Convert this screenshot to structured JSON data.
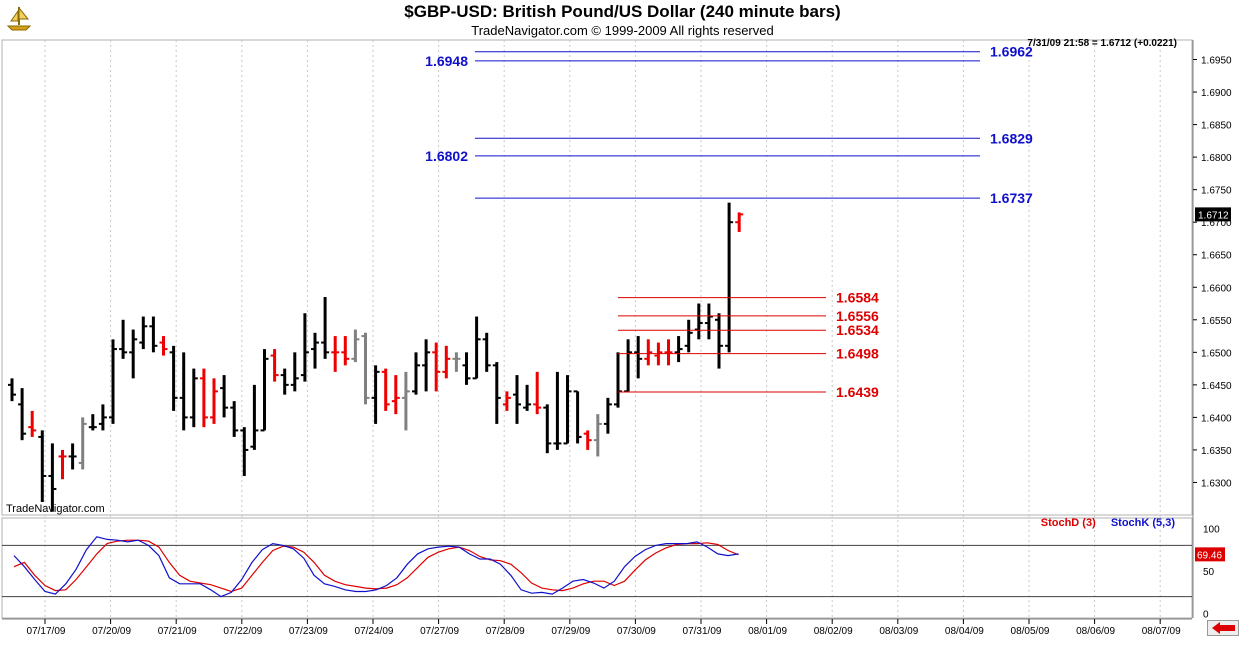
{
  "header": {
    "title": "$GBP-USD:  British Pound/US Dollar  (240 minute bars)",
    "copyright": "TradeNavigator.com © 1999-2009 All rights reserved",
    "last_quote": "7/31/09 21:58 = 1.6712 (+0.0221)",
    "watermark": "TradeNavigator.com"
  },
  "colors": {
    "up_bar": "#000000",
    "down_bar": "#ee0000",
    "neutral_bar": "#808080",
    "resistance": "#1010cc",
    "support": "#dd0000",
    "stoch_d": "#dd0000",
    "stoch_k": "#1010cc"
  },
  "icons": {
    "logo": "tradenavigator-logo-icon",
    "scroll": "red-left-arrow-icon"
  },
  "chart_data": [
    {
      "type": "ohlc",
      "title": "$GBP-USD:  British Pound/US Dollar  (240 minute bars)",
      "ylim": [
        1.625,
        1.698
      ],
      "yticks": [
        1.63,
        1.635,
        1.64,
        1.645,
        1.65,
        1.655,
        1.66,
        1.665,
        1.67,
        1.675,
        1.68,
        1.685,
        1.69,
        1.695
      ],
      "price_label": "1.6712",
      "x_dates": [
        "07/17/09",
        "07/20/09",
        "07/21/09",
        "07/22/09",
        "07/23/09",
        "07/24/09",
        "07/27/09",
        "07/28/09",
        "07/29/09",
        "07/30/09",
        "07/31/09",
        "08/01/09",
        "08/02/09",
        "08/03/09",
        "08/04/09",
        "08/05/09",
        "08/06/09",
        "08/07/09"
      ],
      "bars": [
        {
          "o": 1.645,
          "h": 1.646,
          "l": 1.6425,
          "c": 1.6435,
          "d": "up"
        },
        {
          "o": 1.642,
          "h": 1.6445,
          "l": 1.6365,
          "c": 1.6375,
          "d": "up"
        },
        {
          "o": 1.6385,
          "h": 1.641,
          "l": 1.637,
          "c": 1.638,
          "d": "dn"
        },
        {
          "o": 1.637,
          "h": 1.638,
          "l": 1.627,
          "c": 1.631,
          "d": "up"
        },
        {
          "o": 1.631,
          "h": 1.636,
          "l": 1.6255,
          "c": 1.629,
          "d": "up"
        },
        {
          "o": 1.634,
          "h": 1.635,
          "l": 1.6305,
          "c": 1.634,
          "d": "dn"
        },
        {
          "o": 1.634,
          "h": 1.636,
          "l": 1.632,
          "c": 1.634,
          "d": "up"
        },
        {
          "o": 1.633,
          "h": 1.64,
          "l": 1.632,
          "c": 1.639,
          "d": "nu"
        },
        {
          "o": 1.6385,
          "h": 1.6405,
          "l": 1.638,
          "c": 1.6385,
          "d": "up"
        },
        {
          "o": 1.639,
          "h": 1.642,
          "l": 1.638,
          "c": 1.64,
          "d": "up"
        },
        {
          "o": 1.64,
          "h": 1.652,
          "l": 1.639,
          "c": 1.6505,
          "d": "up"
        },
        {
          "o": 1.6505,
          "h": 1.655,
          "l": 1.649,
          "c": 1.65,
          "d": "up"
        },
        {
          "o": 1.65,
          "h": 1.6535,
          "l": 1.646,
          "c": 1.652,
          "d": "up"
        },
        {
          "o": 1.6515,
          "h": 1.6555,
          "l": 1.6505,
          "c": 1.654,
          "d": "up"
        },
        {
          "o": 1.654,
          "h": 1.6555,
          "l": 1.65,
          "c": 1.651,
          "d": "up"
        },
        {
          "o": 1.6515,
          "h": 1.6525,
          "l": 1.6495,
          "c": 1.6505,
          "d": "dn"
        },
        {
          "o": 1.65,
          "h": 1.651,
          "l": 1.641,
          "c": 1.643,
          "d": "up"
        },
        {
          "o": 1.643,
          "h": 1.65,
          "l": 1.638,
          "c": 1.64,
          "d": "up"
        },
        {
          "o": 1.64,
          "h": 1.6475,
          "l": 1.6385,
          "c": 1.646,
          "d": "up"
        },
        {
          "o": 1.646,
          "h": 1.6475,
          "l": 1.6385,
          "c": 1.64,
          "d": "dn"
        },
        {
          "o": 1.64,
          "h": 1.646,
          "l": 1.639,
          "c": 1.644,
          "d": "dn"
        },
        {
          "o": 1.6445,
          "h": 1.6465,
          "l": 1.64,
          "c": 1.6415,
          "d": "up"
        },
        {
          "o": 1.6415,
          "h": 1.6425,
          "l": 1.637,
          "c": 1.638,
          "d": "up"
        },
        {
          "o": 1.638,
          "h": 1.6385,
          "l": 1.631,
          "c": 1.635,
          "d": "up"
        },
        {
          "o": 1.6355,
          "h": 1.645,
          "l": 1.635,
          "c": 1.638,
          "d": "up"
        },
        {
          "o": 1.638,
          "h": 1.6505,
          "l": 1.638,
          "c": 1.649,
          "d": "up"
        },
        {
          "o": 1.6495,
          "h": 1.6505,
          "l": 1.6455,
          "c": 1.6465,
          "d": "dn"
        },
        {
          "o": 1.6465,
          "h": 1.6475,
          "l": 1.6435,
          "c": 1.645,
          "d": "up"
        },
        {
          "o": 1.645,
          "h": 1.65,
          "l": 1.644,
          "c": 1.646,
          "d": "up"
        },
        {
          "o": 1.6465,
          "h": 1.656,
          "l": 1.6455,
          "c": 1.65,
          "d": "up"
        },
        {
          "o": 1.6505,
          "h": 1.653,
          "l": 1.6475,
          "c": 1.6515,
          "d": "up"
        },
        {
          "o": 1.6515,
          "h": 1.6585,
          "l": 1.649,
          "c": 1.65,
          "d": "up"
        },
        {
          "o": 1.65,
          "h": 1.6525,
          "l": 1.647,
          "c": 1.65,
          "d": "dn"
        },
        {
          "o": 1.65,
          "h": 1.6525,
          "l": 1.648,
          "c": 1.649,
          "d": "dn"
        },
        {
          "o": 1.649,
          "h": 1.6535,
          "l": 1.6485,
          "c": 1.652,
          "d": "nu"
        },
        {
          "o": 1.6525,
          "h": 1.653,
          "l": 1.642,
          "c": 1.643,
          "d": "nu"
        },
        {
          "o": 1.643,
          "h": 1.648,
          "l": 1.639,
          "c": 1.647,
          "d": "up"
        },
        {
          "o": 1.647,
          "h": 1.6475,
          "l": 1.641,
          "c": 1.642,
          "d": "dn"
        },
        {
          "o": 1.6425,
          "h": 1.6465,
          "l": 1.6405,
          "c": 1.643,
          "d": "dn"
        },
        {
          "o": 1.643,
          "h": 1.647,
          "l": 1.638,
          "c": 1.644,
          "d": "nu"
        },
        {
          "o": 1.644,
          "h": 1.65,
          "l": 1.6435,
          "c": 1.648,
          "d": "up"
        },
        {
          "o": 1.648,
          "h": 1.652,
          "l": 1.644,
          "c": 1.65,
          "d": "up"
        },
        {
          "o": 1.65,
          "h": 1.6515,
          "l": 1.644,
          "c": 1.647,
          "d": "dn"
        },
        {
          "o": 1.647,
          "h": 1.651,
          "l": 1.646,
          "c": 1.649,
          "d": "dn"
        },
        {
          "o": 1.649,
          "h": 1.65,
          "l": 1.647,
          "c": 1.649,
          "d": "nu"
        },
        {
          "o": 1.648,
          "h": 1.65,
          "l": 1.645,
          "c": 1.646,
          "d": "up"
        },
        {
          "o": 1.646,
          "h": 1.6555,
          "l": 1.646,
          "c": 1.652,
          "d": "up"
        },
        {
          "o": 1.652,
          "h": 1.653,
          "l": 1.647,
          "c": 1.648,
          "d": "up"
        },
        {
          "o": 1.648,
          "h": 1.6485,
          "l": 1.639,
          "c": 1.643,
          "d": "up"
        },
        {
          "o": 1.642,
          "h": 1.644,
          "l": 1.641,
          "c": 1.643,
          "d": "dn"
        },
        {
          "o": 1.6435,
          "h": 1.6465,
          "l": 1.639,
          "c": 1.642,
          "d": "up"
        },
        {
          "o": 1.6415,
          "h": 1.645,
          "l": 1.641,
          "c": 1.642,
          "d": "up"
        },
        {
          "o": 1.642,
          "h": 1.647,
          "l": 1.6405,
          "c": 1.6415,
          "d": "dn"
        },
        {
          "o": 1.6415,
          "h": 1.642,
          "l": 1.6345,
          "c": 1.636,
          "d": "up"
        },
        {
          "o": 1.636,
          "h": 1.647,
          "l": 1.635,
          "c": 1.636,
          "d": "up"
        },
        {
          "o": 1.636,
          "h": 1.6465,
          "l": 1.636,
          "c": 1.644,
          "d": "up"
        },
        {
          "o": 1.644,
          "h": 1.644,
          "l": 1.636,
          "c": 1.637,
          "d": "up"
        },
        {
          "o": 1.6375,
          "h": 1.638,
          "l": 1.635,
          "c": 1.6365,
          "d": "dn"
        },
        {
          "o": 1.6365,
          "h": 1.6405,
          "l": 1.634,
          "c": 1.639,
          "d": "nu"
        },
        {
          "o": 1.639,
          "h": 1.643,
          "l": 1.6375,
          "c": 1.642,
          "d": "up"
        },
        {
          "o": 1.642,
          "h": 1.65,
          "l": 1.6415,
          "c": 1.644,
          "d": "up"
        },
        {
          "o": 1.644,
          "h": 1.652,
          "l": 1.644,
          "c": 1.65,
          "d": "up"
        },
        {
          "o": 1.65,
          "h": 1.6525,
          "l": 1.646,
          "c": 1.649,
          "d": "up"
        },
        {
          "o": 1.649,
          "h": 1.652,
          "l": 1.648,
          "c": 1.65,
          "d": "dn"
        },
        {
          "o": 1.6495,
          "h": 1.6515,
          "l": 1.648,
          "c": 1.65,
          "d": "dn"
        },
        {
          "o": 1.65,
          "h": 1.652,
          "l": 1.648,
          "c": 1.65,
          "d": "dn"
        },
        {
          "o": 1.65,
          "h": 1.6525,
          "l": 1.6485,
          "c": 1.6505,
          "d": "up"
        },
        {
          "o": 1.651,
          "h": 1.655,
          "l": 1.65,
          "c": 1.653,
          "d": "up"
        },
        {
          "o": 1.6535,
          "h": 1.6575,
          "l": 1.652,
          "c": 1.6545,
          "d": "up"
        },
        {
          "o": 1.6545,
          "h": 1.6575,
          "l": 1.652,
          "c": 1.6555,
          "d": "up"
        },
        {
          "o": 1.655,
          "h": 1.656,
          "l": 1.6475,
          "c": 1.651,
          "d": "up"
        },
        {
          "o": 1.651,
          "h": 1.673,
          "l": 1.65,
          "c": 1.67,
          "d": "up"
        },
        {
          "o": 1.67,
          "h": 1.6715,
          "l": 1.6685,
          "c": 1.6712,
          "d": "dn"
        }
      ],
      "levels": [
        {
          "value": "1.6962",
          "price": 1.6962,
          "side": "right",
          "color": "#1010cc"
        },
        {
          "value": "1.6948",
          "price": 1.6948,
          "side": "left",
          "color": "#1010cc"
        },
        {
          "value": "1.6829",
          "price": 1.6829,
          "side": "right",
          "color": "#1010cc"
        },
        {
          "value": "1.6802",
          "price": 1.6802,
          "side": "left",
          "color": "#1010cc"
        },
        {
          "value": "1.6737",
          "price": 1.6737,
          "side": "right",
          "color": "#1010cc"
        },
        {
          "value": "1.6584",
          "price": 1.6584,
          "side": "right",
          "color": "#dd0000"
        },
        {
          "value": "1.6556",
          "price": 1.6556,
          "side": "right",
          "color": "#dd0000"
        },
        {
          "value": "1.6534",
          "price": 1.6534,
          "side": "right",
          "color": "#dd0000"
        },
        {
          "value": "1.6498",
          "price": 1.6498,
          "side": "right",
          "color": "#dd0000"
        },
        {
          "value": "1.6439",
          "price": 1.6439,
          "side": "right",
          "color": "#dd0000"
        }
      ]
    },
    {
      "type": "line",
      "ylim": [
        -5,
        112
      ],
      "yticks": [
        "100",
        "50",
        "0"
      ],
      "overbought": 80,
      "oversold": 20,
      "legend": [
        "StochD (3)",
        "StochK (5,3)"
      ],
      "last_value": "69.46",
      "series": [
        {
          "name": "StochD (3)",
          "values": [
            55,
            60,
            45,
            33,
            27,
            28,
            40,
            55,
            70,
            82,
            85,
            86,
            86,
            85,
            78,
            60,
            45,
            38,
            36,
            34,
            30,
            26,
            30,
            45,
            60,
            74,
            79,
            78,
            72,
            60,
            45,
            38,
            34,
            32,
            30,
            29,
            30,
            34,
            42,
            54,
            66,
            72,
            76,
            78,
            74,
            67,
            63,
            62,
            58,
            48,
            36,
            30,
            28,
            27,
            30,
            35,
            38,
            38,
            33,
            38,
            51,
            63,
            71,
            77,
            81,
            82,
            82,
            83,
            81,
            74,
            69
          ]
        },
        {
          "name": "StochK (5,3)",
          "values": [
            68,
            55,
            40,
            26,
            23,
            35,
            52,
            75,
            90,
            87,
            86,
            84,
            86,
            80,
            68,
            42,
            35,
            35,
            35,
            28,
            20,
            25,
            40,
            60,
            75,
            82,
            80,
            76,
            65,
            45,
            35,
            32,
            28,
            26,
            26,
            28,
            33,
            42,
            58,
            70,
            76,
            78,
            79,
            78,
            70,
            64,
            64,
            58,
            45,
            28,
            24,
            25,
            23,
            30,
            38,
            40,
            36,
            30,
            38,
            55,
            67,
            75,
            80,
            82,
            82,
            82,
            84,
            78,
            70,
            68,
            70
          ]
        }
      ]
    }
  ]
}
